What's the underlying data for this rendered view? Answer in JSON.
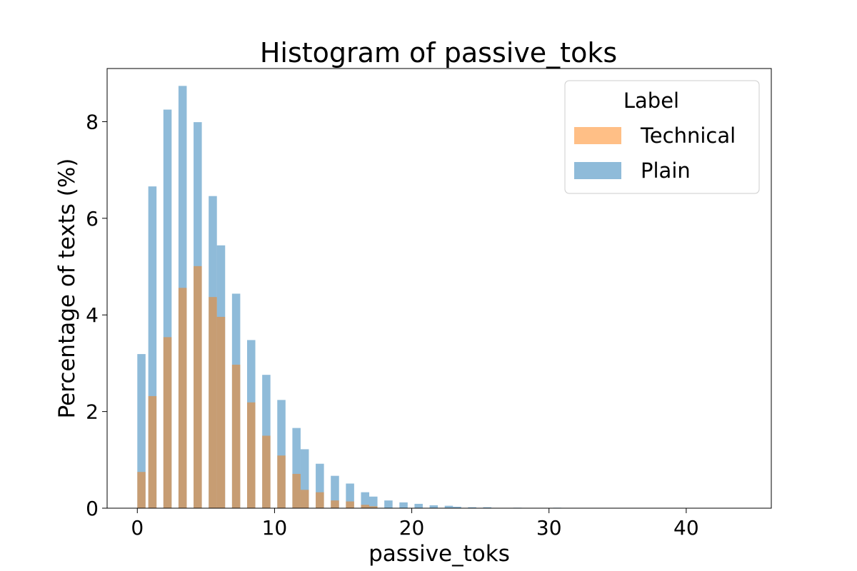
{
  "chart_data": {
    "type": "histogram",
    "title": "Histogram of passive_toks",
    "xlabel": "passive_toks",
    "ylabel": "Percentage of texts (%)",
    "xlim": [
      -2.2,
      46.2
    ],
    "ylim": [
      0,
      9.1
    ],
    "xticks": [
      0,
      10,
      20,
      30,
      40
    ],
    "yticks": [
      0,
      2,
      4,
      6,
      8
    ],
    "bin_width": 0.6,
    "legend": {
      "title": "Label",
      "position": "top-right"
    },
    "series": [
      {
        "name": "Technical",
        "color": "#ff7f0e",
        "opacity": 0.5,
        "bins": [
          {
            "x": 0.0,
            "y": 0.75
          },
          {
            "x": 0.8,
            "y": 2.32
          },
          {
            "x": 1.9,
            "y": 3.54
          },
          {
            "x": 3.0,
            "y": 4.56
          },
          {
            "x": 4.1,
            "y": 5.01
          },
          {
            "x": 5.2,
            "y": 4.37
          },
          {
            "x": 5.8,
            "y": 3.96
          },
          {
            "x": 6.9,
            "y": 2.97
          },
          {
            "x": 8.0,
            "y": 2.19
          },
          {
            "x": 9.1,
            "y": 1.5
          },
          {
            "x": 10.2,
            "y": 1.09
          },
          {
            "x": 11.3,
            "y": 0.71
          },
          {
            "x": 11.9,
            "y": 0.38
          },
          {
            "x": 13.0,
            "y": 0.33
          },
          {
            "x": 14.1,
            "y": 0.16
          },
          {
            "x": 15.2,
            "y": 0.14
          },
          {
            "x": 16.3,
            "y": 0.07
          },
          {
            "x": 16.9,
            "y": 0.04
          }
        ]
      },
      {
        "name": "Plain",
        "color": "#1f77b4",
        "opacity": 0.5,
        "bins": [
          {
            "x": 0.0,
            "y": 3.19
          },
          {
            "x": 0.8,
            "y": 6.66
          },
          {
            "x": 1.9,
            "y": 8.25
          },
          {
            "x": 3.0,
            "y": 8.74
          },
          {
            "x": 4.1,
            "y": 7.99
          },
          {
            "x": 5.2,
            "y": 6.46
          },
          {
            "x": 5.8,
            "y": 5.44
          },
          {
            "x": 6.9,
            "y": 4.44
          },
          {
            "x": 8.0,
            "y": 3.48
          },
          {
            "x": 9.1,
            "y": 2.76
          },
          {
            "x": 10.2,
            "y": 2.24
          },
          {
            "x": 11.3,
            "y": 1.66
          },
          {
            "x": 11.9,
            "y": 1.22
          },
          {
            "x": 13.0,
            "y": 0.92
          },
          {
            "x": 14.1,
            "y": 0.67
          },
          {
            "x": 15.2,
            "y": 0.51
          },
          {
            "x": 16.3,
            "y": 0.33
          },
          {
            "x": 16.9,
            "y": 0.24
          },
          {
            "x": 18.0,
            "y": 0.16
          },
          {
            "x": 19.1,
            "y": 0.12
          },
          {
            "x": 20.2,
            "y": 0.09
          },
          {
            "x": 21.3,
            "y": 0.06
          },
          {
            "x": 22.4,
            "y": 0.05
          },
          {
            "x": 23.0,
            "y": 0.03
          },
          {
            "x": 24.1,
            "y": 0.02
          },
          {
            "x": 25.2,
            "y": 0.02
          },
          {
            "x": 27.4,
            "y": 0.01
          },
          {
            "x": 30.3,
            "y": 0.01
          }
        ]
      }
    ]
  }
}
